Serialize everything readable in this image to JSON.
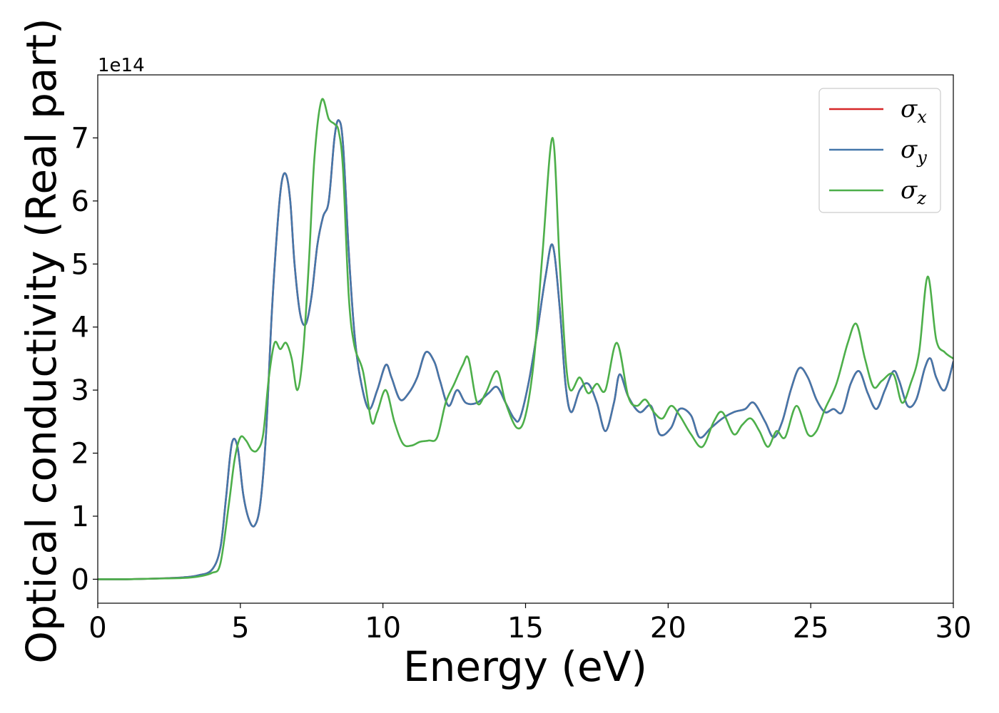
{
  "chart_data": {
    "type": "line",
    "xlabel": "Energy (eV)",
    "ylabel": "Optical conductivity (Real part)",
    "y_offset_label": "1e14",
    "xlim": [
      0,
      30
    ],
    "ylim": [
      -0.38,
      8.0
    ],
    "xticks": [
      0,
      5,
      10,
      15,
      20,
      25,
      30
    ],
    "yticks": [
      0,
      1,
      2,
      3,
      4,
      5,
      6,
      7
    ],
    "grid": false,
    "legend_position": "top-right",
    "series": [
      {
        "name": "σx",
        "symbol": "σ",
        "subscript": "x",
        "color": "#d62728",
        "x": [
          0,
          1,
          2,
          3,
          3.5,
          4,
          4.3,
          4.5,
          4.7,
          4.9,
          5.1,
          5.3,
          5.5,
          5.7,
          5.9,
          6.1,
          6.3,
          6.45,
          6.6,
          6.75,
          6.9,
          7.1,
          7.3,
          7.5,
          7.7,
          7.9,
          8.1,
          8.3,
          8.45,
          8.6,
          8.8,
          9.0,
          9.2,
          9.5,
          9.8,
          10.1,
          10.3,
          10.6,
          10.9,
          11.2,
          11.5,
          11.8,
          12.0,
          12.3,
          12.6,
          12.9,
          13.3,
          13.7,
          14.0,
          14.3,
          14.6,
          14.8,
          15.1,
          15.4,
          15.7,
          15.95,
          16.2,
          16.4,
          16.6,
          16.9,
          17.2,
          17.5,
          17.8,
          18.1,
          18.3,
          18.6,
          19.0,
          19.4,
          19.7,
          20.1,
          20.4,
          20.8,
          21.1,
          21.5,
          21.9,
          22.3,
          22.7,
          23.0,
          23.4,
          23.7,
          24.0,
          24.3,
          24.6,
          24.9,
          25.2,
          25.5,
          25.8,
          26.1,
          26.4,
          26.7,
          27.0,
          27.3,
          27.6,
          27.9,
          28.1,
          28.4,
          28.7,
          29.0,
          29.2,
          29.4,
          29.7,
          30.0
        ],
        "y": [
          0.0,
          0.0,
          0.01,
          0.03,
          0.06,
          0.15,
          0.5,
          1.3,
          2.15,
          2.1,
          1.35,
          0.95,
          0.85,
          1.2,
          2.3,
          4.2,
          5.6,
          6.3,
          6.42,
          6.0,
          5.0,
          4.2,
          4.05,
          4.5,
          5.3,
          5.75,
          6.0,
          7.0,
          7.28,
          6.9,
          5.2,
          3.9,
          3.2,
          2.7,
          3.0,
          3.4,
          3.2,
          2.85,
          2.95,
          3.2,
          3.6,
          3.45,
          3.15,
          2.75,
          3.0,
          2.8,
          2.8,
          2.95,
          3.05,
          2.8,
          2.55,
          2.55,
          3.1,
          3.9,
          4.8,
          5.3,
          4.3,
          3.1,
          2.65,
          3.0,
          3.1,
          2.8,
          2.35,
          2.8,
          3.25,
          2.9,
          2.65,
          2.75,
          2.3,
          2.4,
          2.7,
          2.6,
          2.25,
          2.4,
          2.55,
          2.65,
          2.7,
          2.8,
          2.5,
          2.25,
          2.5,
          3.0,
          3.35,
          3.2,
          2.85,
          2.65,
          2.7,
          2.65,
          3.1,
          3.3,
          2.95,
          2.7,
          3.0,
          3.3,
          3.15,
          2.75,
          2.85,
          3.35,
          3.5,
          3.2,
          3.0,
          3.45
        ]
      },
      {
        "name": "σy",
        "symbol": "σ",
        "subscript": "y",
        "color": "#4477aa",
        "x": [
          0,
          1,
          2,
          3,
          3.5,
          4,
          4.3,
          4.5,
          4.7,
          4.9,
          5.1,
          5.3,
          5.5,
          5.7,
          5.9,
          6.1,
          6.3,
          6.45,
          6.6,
          6.75,
          6.9,
          7.1,
          7.3,
          7.5,
          7.7,
          7.9,
          8.1,
          8.3,
          8.45,
          8.6,
          8.8,
          9.0,
          9.2,
          9.5,
          9.8,
          10.1,
          10.3,
          10.6,
          10.9,
          11.2,
          11.5,
          11.8,
          12.0,
          12.3,
          12.6,
          12.9,
          13.3,
          13.7,
          14.0,
          14.3,
          14.6,
          14.8,
          15.1,
          15.4,
          15.7,
          15.95,
          16.2,
          16.4,
          16.6,
          16.9,
          17.2,
          17.5,
          17.8,
          18.1,
          18.3,
          18.6,
          19.0,
          19.4,
          19.7,
          20.1,
          20.4,
          20.8,
          21.1,
          21.5,
          21.9,
          22.3,
          22.7,
          23.0,
          23.4,
          23.7,
          24.0,
          24.3,
          24.6,
          24.9,
          25.2,
          25.5,
          25.8,
          26.1,
          26.4,
          26.7,
          27.0,
          27.3,
          27.6,
          27.9,
          28.1,
          28.4,
          28.7,
          29.0,
          29.2,
          29.4,
          29.7,
          30.0
        ],
        "y": [
          0.0,
          0.0,
          0.01,
          0.03,
          0.06,
          0.15,
          0.5,
          1.3,
          2.15,
          2.1,
          1.35,
          0.95,
          0.85,
          1.2,
          2.3,
          4.2,
          5.6,
          6.3,
          6.42,
          6.0,
          5.0,
          4.2,
          4.05,
          4.5,
          5.3,
          5.75,
          6.0,
          7.0,
          7.28,
          6.9,
          5.2,
          3.9,
          3.2,
          2.7,
          3.0,
          3.4,
          3.2,
          2.85,
          2.95,
          3.2,
          3.6,
          3.45,
          3.15,
          2.75,
          3.0,
          2.8,
          2.8,
          2.95,
          3.05,
          2.8,
          2.55,
          2.55,
          3.1,
          3.9,
          4.8,
          5.3,
          4.3,
          3.1,
          2.65,
          3.0,
          3.1,
          2.8,
          2.35,
          2.8,
          3.25,
          2.9,
          2.65,
          2.75,
          2.3,
          2.4,
          2.7,
          2.6,
          2.25,
          2.4,
          2.55,
          2.65,
          2.7,
          2.8,
          2.5,
          2.25,
          2.5,
          3.0,
          3.35,
          3.2,
          2.85,
          2.65,
          2.7,
          2.65,
          3.1,
          3.3,
          2.95,
          2.7,
          3.0,
          3.3,
          3.15,
          2.75,
          2.85,
          3.35,
          3.5,
          3.2,
          3.0,
          3.45
        ]
      },
      {
        "name": "σz",
        "symbol": "σ",
        "subscript": "z",
        "color": "#4daf4a",
        "x": [
          0,
          1,
          2,
          3,
          3.5,
          4,
          4.3,
          4.6,
          4.8,
          5.0,
          5.2,
          5.4,
          5.6,
          5.8,
          6.0,
          6.2,
          6.4,
          6.6,
          6.8,
          7.0,
          7.2,
          7.4,
          7.6,
          7.85,
          8.1,
          8.3,
          8.45,
          8.6,
          8.8,
          9.0,
          9.3,
          9.6,
          9.8,
          10.1,
          10.4,
          10.7,
          11.0,
          11.3,
          11.6,
          11.9,
          12.2,
          12.5,
          12.8,
          13.0,
          13.3,
          13.6,
          14.0,
          14.3,
          14.7,
          15.0,
          15.3,
          15.6,
          15.95,
          16.2,
          16.5,
          16.9,
          17.2,
          17.5,
          17.8,
          18.2,
          18.6,
          18.9,
          19.2,
          19.5,
          19.8,
          20.1,
          20.4,
          20.8,
          21.2,
          21.6,
          21.9,
          22.3,
          22.6,
          22.9,
          23.2,
          23.5,
          23.8,
          24.1,
          24.5,
          24.9,
          25.2,
          25.5,
          25.9,
          26.3,
          26.6,
          26.9,
          27.2,
          27.5,
          27.9,
          28.2,
          28.5,
          28.8,
          29.1,
          29.4,
          29.7,
          30.0
        ],
        "y": [
          0.0,
          0.0,
          0.01,
          0.02,
          0.04,
          0.1,
          0.25,
          1.2,
          1.9,
          2.25,
          2.2,
          2.05,
          2.05,
          2.3,
          3.2,
          3.75,
          3.65,
          3.75,
          3.5,
          3.0,
          3.6,
          5.0,
          6.7,
          7.6,
          7.3,
          7.22,
          7.1,
          6.5,
          4.5,
          3.7,
          3.3,
          2.5,
          2.65,
          3.0,
          2.5,
          2.15,
          2.12,
          2.18,
          2.2,
          2.25,
          2.8,
          3.1,
          3.4,
          3.5,
          2.8,
          2.95,
          3.3,
          2.8,
          2.4,
          2.6,
          3.5,
          5.2,
          7.0,
          5.0,
          3.1,
          3.2,
          2.95,
          3.1,
          3.0,
          3.75,
          2.9,
          2.75,
          2.85,
          2.65,
          2.55,
          2.75,
          2.6,
          2.3,
          2.1,
          2.5,
          2.65,
          2.3,
          2.45,
          2.55,
          2.35,
          2.1,
          2.35,
          2.25,
          2.75,
          2.3,
          2.35,
          2.7,
          3.1,
          3.75,
          4.05,
          3.5,
          3.05,
          3.15,
          3.25,
          2.8,
          3.1,
          3.6,
          4.8,
          3.8,
          3.6,
          3.5
        ]
      }
    ]
  }
}
